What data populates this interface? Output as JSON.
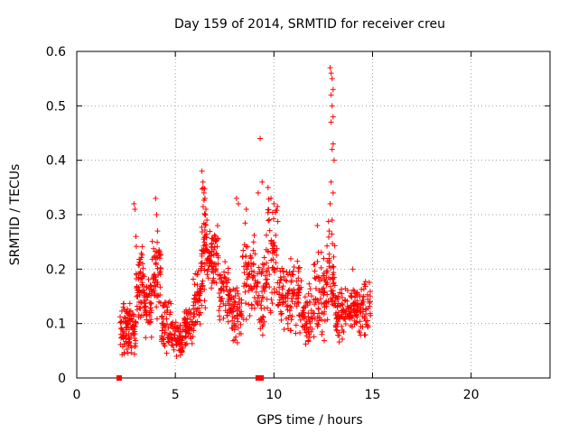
{
  "chart_data": {
    "type": "scatter",
    "title": "Day 159 of 2014, SRMTID for receiver creu",
    "xlabel": "GPS time / hours",
    "ylabel": "SRMTID / TECUs",
    "xlim": [
      0,
      24
    ],
    "ylim": [
      0,
      0.6
    ],
    "x_ticks": [
      0,
      5,
      10,
      15,
      20
    ],
    "x_tick_labels": [
      "0",
      "5",
      "10",
      "15",
      "20"
    ],
    "y_ticks": [
      0,
      0.1,
      0.2,
      0.3,
      0.4,
      0.5,
      0.6
    ],
    "y_tick_labels": [
      "0",
      "0.1",
      "0.2",
      "0.3",
      "0.4",
      "0.5",
      "0.6"
    ],
    "grid": true,
    "marker": "plus",
    "marker_color": "#ff0000",
    "zero_markers_x": [
      2.15,
      9.2,
      9.35
    ],
    "clusters": [
      {
        "x": [
          2.2,
          2.6
        ],
        "y": [
          0.03,
          0.15
        ],
        "n": 55
      },
      {
        "x": [
          2.6,
          3.0
        ],
        "y": [
          0.04,
          0.14
        ],
        "n": 55
      },
      {
        "x": [
          3.0,
          3.4
        ],
        "y": [
          0.08,
          0.26
        ],
        "n": 55
      },
      {
        "x": [
          3.4,
          3.8
        ],
        "y": [
          0.06,
          0.2
        ],
        "n": 50
      },
      {
        "x": [
          3.8,
          4.3
        ],
        "y": [
          0.1,
          0.28
        ],
        "n": 60
      },
      {
        "x": [
          4.3,
          4.8
        ],
        "y": [
          0.04,
          0.15
        ],
        "n": 55
      },
      {
        "x": [
          4.8,
          5.4
        ],
        "y": [
          0.03,
          0.11
        ],
        "n": 60
      },
      {
        "x": [
          5.4,
          5.9
        ],
        "y": [
          0.04,
          0.15
        ],
        "n": 55
      },
      {
        "x": [
          5.9,
          6.3
        ],
        "y": [
          0.08,
          0.2
        ],
        "n": 50
      },
      {
        "x": [
          6.3,
          6.6
        ],
        "y": [
          0.12,
          0.36
        ],
        "n": 55
      },
      {
        "x": [
          6.6,
          7.2
        ],
        "y": [
          0.16,
          0.29
        ],
        "n": 70
      },
      {
        "x": [
          7.2,
          7.8
        ],
        "y": [
          0.09,
          0.22
        ],
        "n": 60
      },
      {
        "x": [
          7.8,
          8.4
        ],
        "y": [
          0.06,
          0.18
        ],
        "n": 60
      },
      {
        "x": [
          8.4,
          9.0
        ],
        "y": [
          0.09,
          0.3
        ],
        "n": 60
      },
      {
        "x": [
          9.0,
          9.6
        ],
        "y": [
          0.06,
          0.24
        ],
        "n": 55
      },
      {
        "x": [
          9.6,
          10.2
        ],
        "y": [
          0.1,
          0.34
        ],
        "n": 65
      },
      {
        "x": [
          10.2,
          10.8
        ],
        "y": [
          0.08,
          0.22
        ],
        "n": 55
      },
      {
        "x": [
          10.8,
          11.4
        ],
        "y": [
          0.07,
          0.23
        ],
        "n": 55
      },
      {
        "x": [
          11.4,
          12.0
        ],
        "y": [
          0.05,
          0.18
        ],
        "n": 55
      },
      {
        "x": [
          12.0,
          12.6
        ],
        "y": [
          0.06,
          0.24
        ],
        "n": 60
      },
      {
        "x": [
          12.6,
          13.1
        ],
        "y": [
          0.08,
          0.3
        ],
        "n": 55
      },
      {
        "x": [
          13.1,
          13.6
        ],
        "y": [
          0.06,
          0.17
        ],
        "n": 55
      },
      {
        "x": [
          13.6,
          14.2
        ],
        "y": [
          0.08,
          0.17
        ],
        "n": 60
      },
      {
        "x": [
          14.2,
          14.9
        ],
        "y": [
          0.07,
          0.19
        ],
        "n": 65
      }
    ],
    "peaks": [
      [
        2.9,
        0.32
      ],
      [
        2.95,
        0.31
      ],
      [
        3.0,
        0.26
      ],
      [
        4.0,
        0.33
      ],
      [
        4.05,
        0.3
      ],
      [
        4.1,
        0.27
      ],
      [
        6.35,
        0.38
      ],
      [
        6.4,
        0.36
      ],
      [
        6.45,
        0.34
      ],
      [
        6.5,
        0.33
      ],
      [
        6.6,
        0.29
      ],
      [
        6.55,
        0.31
      ],
      [
        8.1,
        0.33
      ],
      [
        8.2,
        0.32
      ],
      [
        8.6,
        0.31
      ],
      [
        9.3,
        0.44
      ],
      [
        9.4,
        0.36
      ],
      [
        9.2,
        0.34
      ],
      [
        9.7,
        0.35
      ],
      [
        9.85,
        0.33
      ],
      [
        10.0,
        0.32
      ],
      [
        12.2,
        0.28
      ],
      [
        12.85,
        0.57
      ],
      [
        12.9,
        0.56
      ],
      [
        12.95,
        0.55
      ],
      [
        13.0,
        0.53
      ],
      [
        12.9,
        0.52
      ],
      [
        12.95,
        0.5
      ],
      [
        13.0,
        0.48
      ],
      [
        12.9,
        0.47
      ],
      [
        13.0,
        0.43
      ],
      [
        12.95,
        0.42
      ],
      [
        13.05,
        0.4
      ],
      [
        12.9,
        0.36
      ],
      [
        13.0,
        0.34
      ],
      [
        12.85,
        0.32
      ],
      [
        12.95,
        0.29
      ],
      [
        12.8,
        0.27
      ],
      [
        14.0,
        0.2
      ]
    ]
  }
}
